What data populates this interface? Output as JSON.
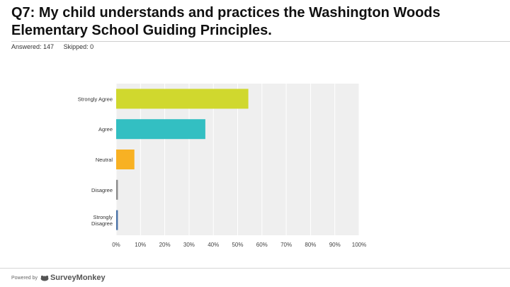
{
  "question": {
    "title": "Q7: My child understands and practices the Washington Woods Elementary School Guiding Principles."
  },
  "stats": {
    "answered": "Answered: 147",
    "skipped": "Skipped: 0"
  },
  "footer": {
    "powered_by": "Powered by",
    "brand": "SurveyMonkey"
  },
  "colors": {
    "plot_bg": "#efefef",
    "grid": "#ffffff"
  },
  "chart_data": {
    "type": "bar",
    "orientation": "horizontal",
    "categories": [
      "Strongly Agree",
      "Agree",
      "Neutral",
      "Disagree",
      "Strongly Disagree"
    ],
    "values": [
      54.4,
      36.7,
      7.5,
      0.7,
      0.7
    ],
    "colors": [
      "#d0d82e",
      "#33bfc2",
      "#f8b123",
      "#8b8b8b",
      "#4a72a6"
    ],
    "xlim": [
      0,
      100
    ],
    "x_ticks": [
      "0%",
      "10%",
      "20%",
      "30%",
      "40%",
      "50%",
      "60%",
      "70%",
      "80%",
      "90%",
      "100%"
    ],
    "grid": true
  }
}
